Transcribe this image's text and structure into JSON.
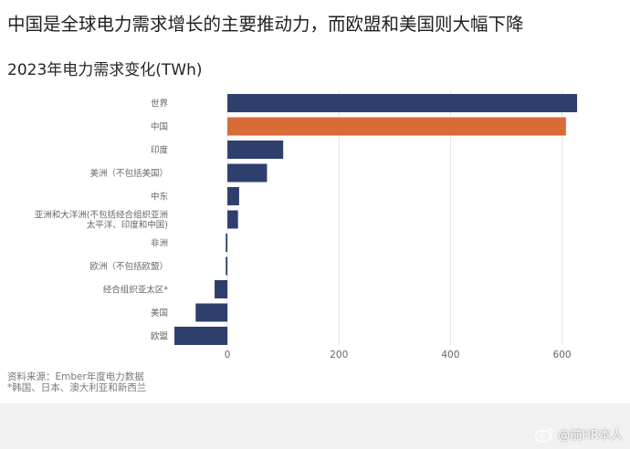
{
  "headline": "中国是全球电力需求增长的主要推动力，而欧盟和美国则大幅下降",
  "notes": {
    "source": "资料来源：Ember年度电力数据",
    "footnote": "*韩国、日本、澳大利亚和新西兰"
  },
  "watermark": {
    "text": "@前HR本人",
    "icon": "weibo-icon"
  },
  "colors": {
    "bar_default": "#2e3f6e",
    "bar_highlight": "#d96b36",
    "grid": "#e3e3e3",
    "label": "#666666"
  },
  "chart_data": {
    "type": "bar",
    "orientation": "horizontal",
    "title": "2023年电力需求变化(TWh)",
    "xlabel": "",
    "ylabel": "",
    "categories": [
      [
        "世界"
      ],
      [
        "中国"
      ],
      [
        "印度"
      ],
      [
        "美洲（不包括美国）"
      ],
      [
        "中东"
      ],
      [
        "亚洲和大洋洲(不包括经合组织亚洲",
        "太平洋、印度和中国)"
      ],
      [
        "非洲"
      ],
      [
        "欧洲（不包括欧盟）"
      ],
      [
        "经合组织亚太区*"
      ],
      [
        "美国"
      ],
      [
        "欧盟"
      ]
    ],
    "values": [
      627,
      607,
      100,
      71,
      21,
      19,
      -3,
      -3,
      -23,
      -57,
      -95
    ],
    "highlight_index": 1,
    "xlim": [
      -100,
      640
    ],
    "xticks": [
      0,
      200,
      400,
      600
    ],
    "grid": true,
    "legend": "none"
  }
}
